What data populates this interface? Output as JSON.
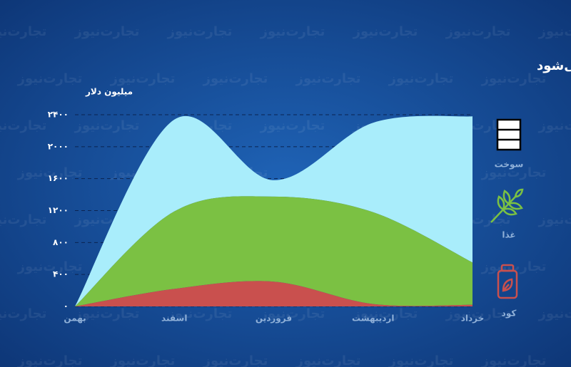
{
  "chart_data": {
    "type": "stacked-area",
    "title": "جنگ منجر به افزایش کسری تجاری کالاهای انتخابی کشورهای دارای درآمد پایین می‌شود",
    "y_label": "میلیون دلار",
    "watermark": "تجارت‌نیوز",
    "categories": [
      "بهمن",
      "اسفند",
      "فروردین",
      "اردیبهشت",
      "خرداد"
    ],
    "series": [
      {
        "name": "کود",
        "color": "#c9504e",
        "values": [
          0,
          220,
          310,
          30,
          20
        ]
      },
      {
        "name": "غذا",
        "color": "#7bc143",
        "values": [
          0,
          970,
          1065,
          1150,
          530
        ]
      },
      {
        "name": "سوخت",
        "color": "#a9edfb",
        "values": [
          0,
          1150,
          205,
          1120,
          1830
        ]
      }
    ],
    "ylim": [
      0,
      2400
    ],
    "yticks": [
      {
        "value": 0,
        "label": "۰"
      },
      {
        "value": 400,
        "label": "۴۰۰"
      },
      {
        "value": 800,
        "label": "۸۰۰"
      },
      {
        "value": 1200,
        "label": "۱۲۰۰"
      },
      {
        "value": 1600,
        "label": "۱۶۰۰"
      },
      {
        "value": 2000,
        "label": "۲۰۰۰"
      },
      {
        "value": 2400,
        "label": "۲۴۰۰"
      }
    ],
    "grid": true
  }
}
